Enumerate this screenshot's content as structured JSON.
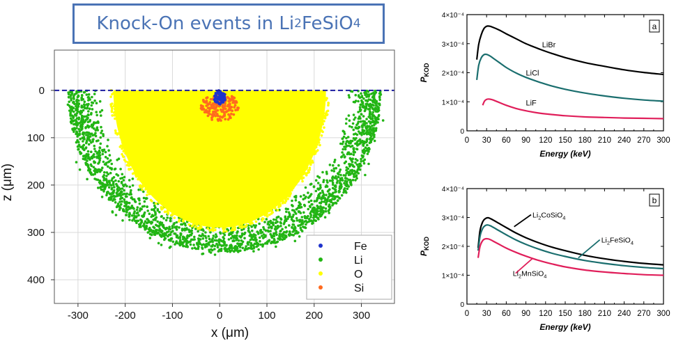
{
  "title": {
    "prefix": "Knock-On events in Li",
    "sub1": "2",
    "mid": "FeSiO",
    "sub2": "4"
  },
  "colors": {
    "title": "#4a73b5",
    "fe": "#1f33cc",
    "li": "#22b514",
    "o": "#ffff00",
    "si": "#ff6a1f",
    "surface": "#1a1aa0",
    "black": "#000000",
    "teal": "#1a6e6e",
    "pink": "#e01e5a"
  },
  "chart_data": [
    {
      "id": "scatter",
      "type": "scatter",
      "xlabel": "x (μm)",
      "ylabel": "z (μm)",
      "xlim": [
        -350,
        370
      ],
      "ylim": [
        450,
        -85
      ],
      "xticks": [
        -300,
        -200,
        -100,
        0,
        100,
        200,
        300
      ],
      "yticks": [
        0,
        100,
        200,
        300,
        400
      ],
      "surface_z": 0,
      "legend": [
        "Fe",
        "Li",
        "O",
        "Si"
      ],
      "regions": {
        "O": {
          "x_range": [
            -225,
            225
          ],
          "z_max": 290
        },
        "Li": {
          "x_range": [
            -315,
            335
          ],
          "z_max": 345
        },
        "Si": {
          "x_range": [
            -40,
            40
          ],
          "z_range": [
            5,
            65
          ]
        },
        "Fe": {
          "x_range": [
            -12,
            12
          ],
          "z_range": [
            0,
            30
          ]
        }
      }
    },
    {
      "id": "panel-a",
      "type": "line",
      "panel_label": "a",
      "xlabel": "Energy (keV)",
      "ylabel": "P",
      "ylabel_sub": "KOD",
      "xlim": [
        0,
        300
      ],
      "ylim": [
        0,
        0.0004
      ],
      "xticks": [
        0,
        30,
        60,
        90,
        120,
        150,
        180,
        210,
        240,
        270,
        300
      ],
      "yticks": [
        "0",
        "1×10⁻⁴",
        "2×10⁻⁴",
        "3×10⁻⁴",
        "4×10⁻⁴"
      ],
      "series": [
        {
          "name": "LiBr",
          "color": "#000000",
          "label_at": [
            125,
            0.000288
          ],
          "x": [
            15,
            18,
            22,
            26,
            30,
            35,
            40,
            50,
            60,
            75,
            90,
            110,
            130,
            150,
            180,
            210,
            240,
            270,
            300
          ],
          "values": [
            0.000245,
            0.000298,
            0.000332,
            0.000352,
            0.00036,
            0.00036,
            0.000356,
            0.000346,
            0.000334,
            0.000317,
            0.0003,
            0.000282,
            0.000266,
            0.000252,
            0.000235,
            0.000222,
            0.00021,
            0.000201,
            0.000194
          ]
        },
        {
          "name": "LiCl",
          "color": "#1a6e6e",
          "label_at": [
            100,
            0.00019
          ],
          "x": [
            15,
            18,
            22,
            26,
            30,
            35,
            40,
            50,
            60,
            75,
            90,
            110,
            130,
            150,
            180,
            210,
            240,
            270,
            300
          ],
          "values": [
            0.000175,
            0.000226,
            0.000252,
            0.000262,
            0.000263,
            0.000258,
            0.00025,
            0.000234,
            0.000218,
            0.000199,
            0.000184,
            0.000168,
            0.000154,
            0.000143,
            0.00013,
            0.00012,
            0.000112,
            0.000106,
            0.000102
          ]
        },
        {
          "name": "LiF",
          "color": "#e01e5a",
          "label_at": [
            98,
            8.7e-05
          ],
          "x": [
            24,
            27,
            31,
            35,
            40,
            50,
            60,
            75,
            90,
            110,
            130,
            150,
            180,
            210,
            240,
            270,
            300
          ],
          "values": [
            8.8e-05,
            0.000103,
            0.000109,
            0.000109,
            0.000106,
            9.7e-05,
            8.8e-05,
            7.7e-05,
            6.9e-05,
            6.1e-05,
            5.6e-05,
            5.2e-05,
            4.8e-05,
            4.6e-05,
            4.4e-05,
            4.3e-05,
            4.2e-05
          ]
        }
      ]
    },
    {
      "id": "panel-b",
      "type": "line",
      "panel_label": "b",
      "xlabel": "Energy (keV)",
      "ylabel": "P",
      "ylabel_sub": "KOD",
      "xlim": [
        0,
        300
      ],
      "ylim": [
        0,
        0.0004
      ],
      "xticks": [
        0,
        30,
        60,
        90,
        120,
        150,
        180,
        210,
        240,
        270,
        300
      ],
      "yticks": [
        "0",
        "1×10⁻⁴",
        "2×10⁻⁴",
        "3×10⁻⁴",
        "4×10⁻⁴"
      ],
      "series": [
        {
          "name": "Li2CoSiO4",
          "label_main": "Li",
          "label_sub1": "2",
          "label_mid": "CoSiO",
          "label_sub2": "4",
          "color": "#000000",
          "label_at": [
            100,
            0.0003
          ],
          "pointer_to": [
            72,
            0.000268
          ],
          "x": [
            17,
            20,
            24,
            28,
            32,
            36,
            40,
            50,
            60,
            75,
            90,
            110,
            130,
            150,
            180,
            210,
            240,
            270,
            300
          ],
          "values": [
            0.000195,
            0.000255,
            0.000285,
            0.000296,
            0.000299,
            0.000296,
            0.000291,
            0.000278,
            0.000265,
            0.000246,
            0.00023,
            0.000212,
            0.000197,
            0.000185,
            0.000169,
            0.000157,
            0.000148,
            0.000141,
            0.000136
          ]
        },
        {
          "name": "Li2FeSiO4",
          "label_main": "Li",
          "label_sub1": "2",
          "label_mid": "FeSiO",
          "label_sub2": "4",
          "color": "#1a6e6e",
          "label_at": [
            205,
            0.000213
          ],
          "pointer_to": [
            170,
            0.00016
          ],
          "x": [
            17,
            20,
            24,
            28,
            32,
            36,
            40,
            50,
            60,
            75,
            90,
            110,
            130,
            150,
            180,
            210,
            240,
            270,
            300
          ],
          "values": [
            0.000185,
            0.000235,
            0.000262,
            0.000272,
            0.000274,
            0.000271,
            0.000266,
            0.000253,
            0.00024,
            0.000222,
            0.000207,
            0.00019,
            0.000176,
            0.000165,
            0.000151,
            0.000141,
            0.000133,
            0.000127,
            0.000123
          ]
        },
        {
          "name": "Li2MnSiO4",
          "label_main": "Li",
          "label_sub1": "2",
          "label_mid": "MnSiO",
          "label_sub2": "4",
          "color": "#e01e5a",
          "label_at": [
            70,
            9.7e-05
          ],
          "pointer_to": [
            100,
            0.000158
          ],
          "x": [
            17,
            20,
            24,
            28,
            32,
            36,
            40,
            50,
            60,
            75,
            90,
            110,
            130,
            150,
            180,
            210,
            240,
            270,
            300
          ],
          "values": [
            0.00016,
            0.0002,
            0.00022,
            0.000226,
            0.000226,
            0.000223,
            0.000218,
            0.000206,
            0.000194,
            0.000179,
            0.000166,
            0.000151,
            0.000139,
            0.000129,
            0.000118,
            0.000111,
            0.000106,
            0.000102,
            0.0001
          ]
        }
      ]
    }
  ]
}
